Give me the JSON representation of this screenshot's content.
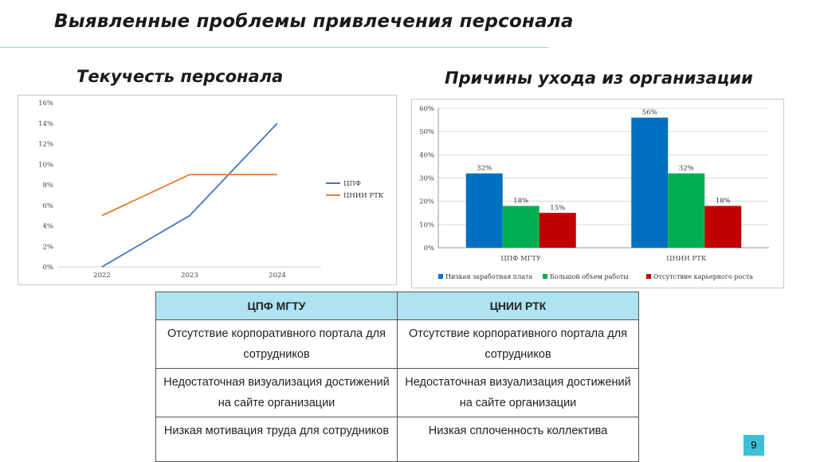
{
  "slide": {
    "title": "Выявленные проблемы привлечения персонала",
    "page_number": "9"
  },
  "left_panel": {
    "heading": "Текучесть персонала"
  },
  "right_panel": {
    "heading": "Причины ухода из организации"
  },
  "chart_data": [
    {
      "type": "line",
      "title": "",
      "x": [
        "2022",
        "2023",
        "2024"
      ],
      "y_ticks": [
        "0%",
        "2%",
        "4%",
        "6%",
        "8%",
        "10%",
        "12%",
        "14%",
        "16%"
      ],
      "ylim": [
        0,
        16
      ],
      "legend_position": "right",
      "grid": false,
      "series": [
        {
          "name": "ЦПФ",
          "color": "#4472c4",
          "values": [
            0,
            5,
            14
          ]
        },
        {
          "name": "ЦНИИ РТК",
          "color": "#ed7d31",
          "values": [
            5,
            9,
            9
          ]
        }
      ]
    },
    {
      "type": "bar",
      "title": "",
      "categories": [
        "ЦПФ МГТУ",
        "ЦНИИ РТК"
      ],
      "y_ticks": [
        "0%",
        "10%",
        "20%",
        "30%",
        "40%",
        "50%",
        "60%"
      ],
      "ylim": [
        0,
        60
      ],
      "legend_position": "bottom",
      "grid": true,
      "series": [
        {
          "name": "Низкая заработная плата",
          "color": "#0070c0",
          "values": [
            32,
            56
          ],
          "labels": [
            "32%",
            "56%"
          ]
        },
        {
          "name": "Большой объем работы",
          "color": "#00b050",
          "values": [
            18,
            32
          ],
          "labels": [
            "18%",
            "32%"
          ]
        },
        {
          "name": "Отсутствие карьерного роста",
          "color": "#c00000",
          "values": [
            15,
            18
          ],
          "labels": [
            "15%",
            "18%"
          ]
        }
      ]
    }
  ],
  "table": {
    "headers": [
      "ЦПФ МГТУ",
      "ЦНИИ РТК"
    ],
    "rows": [
      [
        "Отсутствие корпоративного портала для сотрудников",
        "Отсутствие корпоративного портала для сотрудников"
      ],
      [
        "Недостаточная визуализация достижений на сайте организации",
        "Недостаточная визуализация достижений на сайте организации"
      ],
      [
        "Низкая мотивация труда для сотрудников",
        "Низкая сплоченность коллектива"
      ]
    ]
  }
}
